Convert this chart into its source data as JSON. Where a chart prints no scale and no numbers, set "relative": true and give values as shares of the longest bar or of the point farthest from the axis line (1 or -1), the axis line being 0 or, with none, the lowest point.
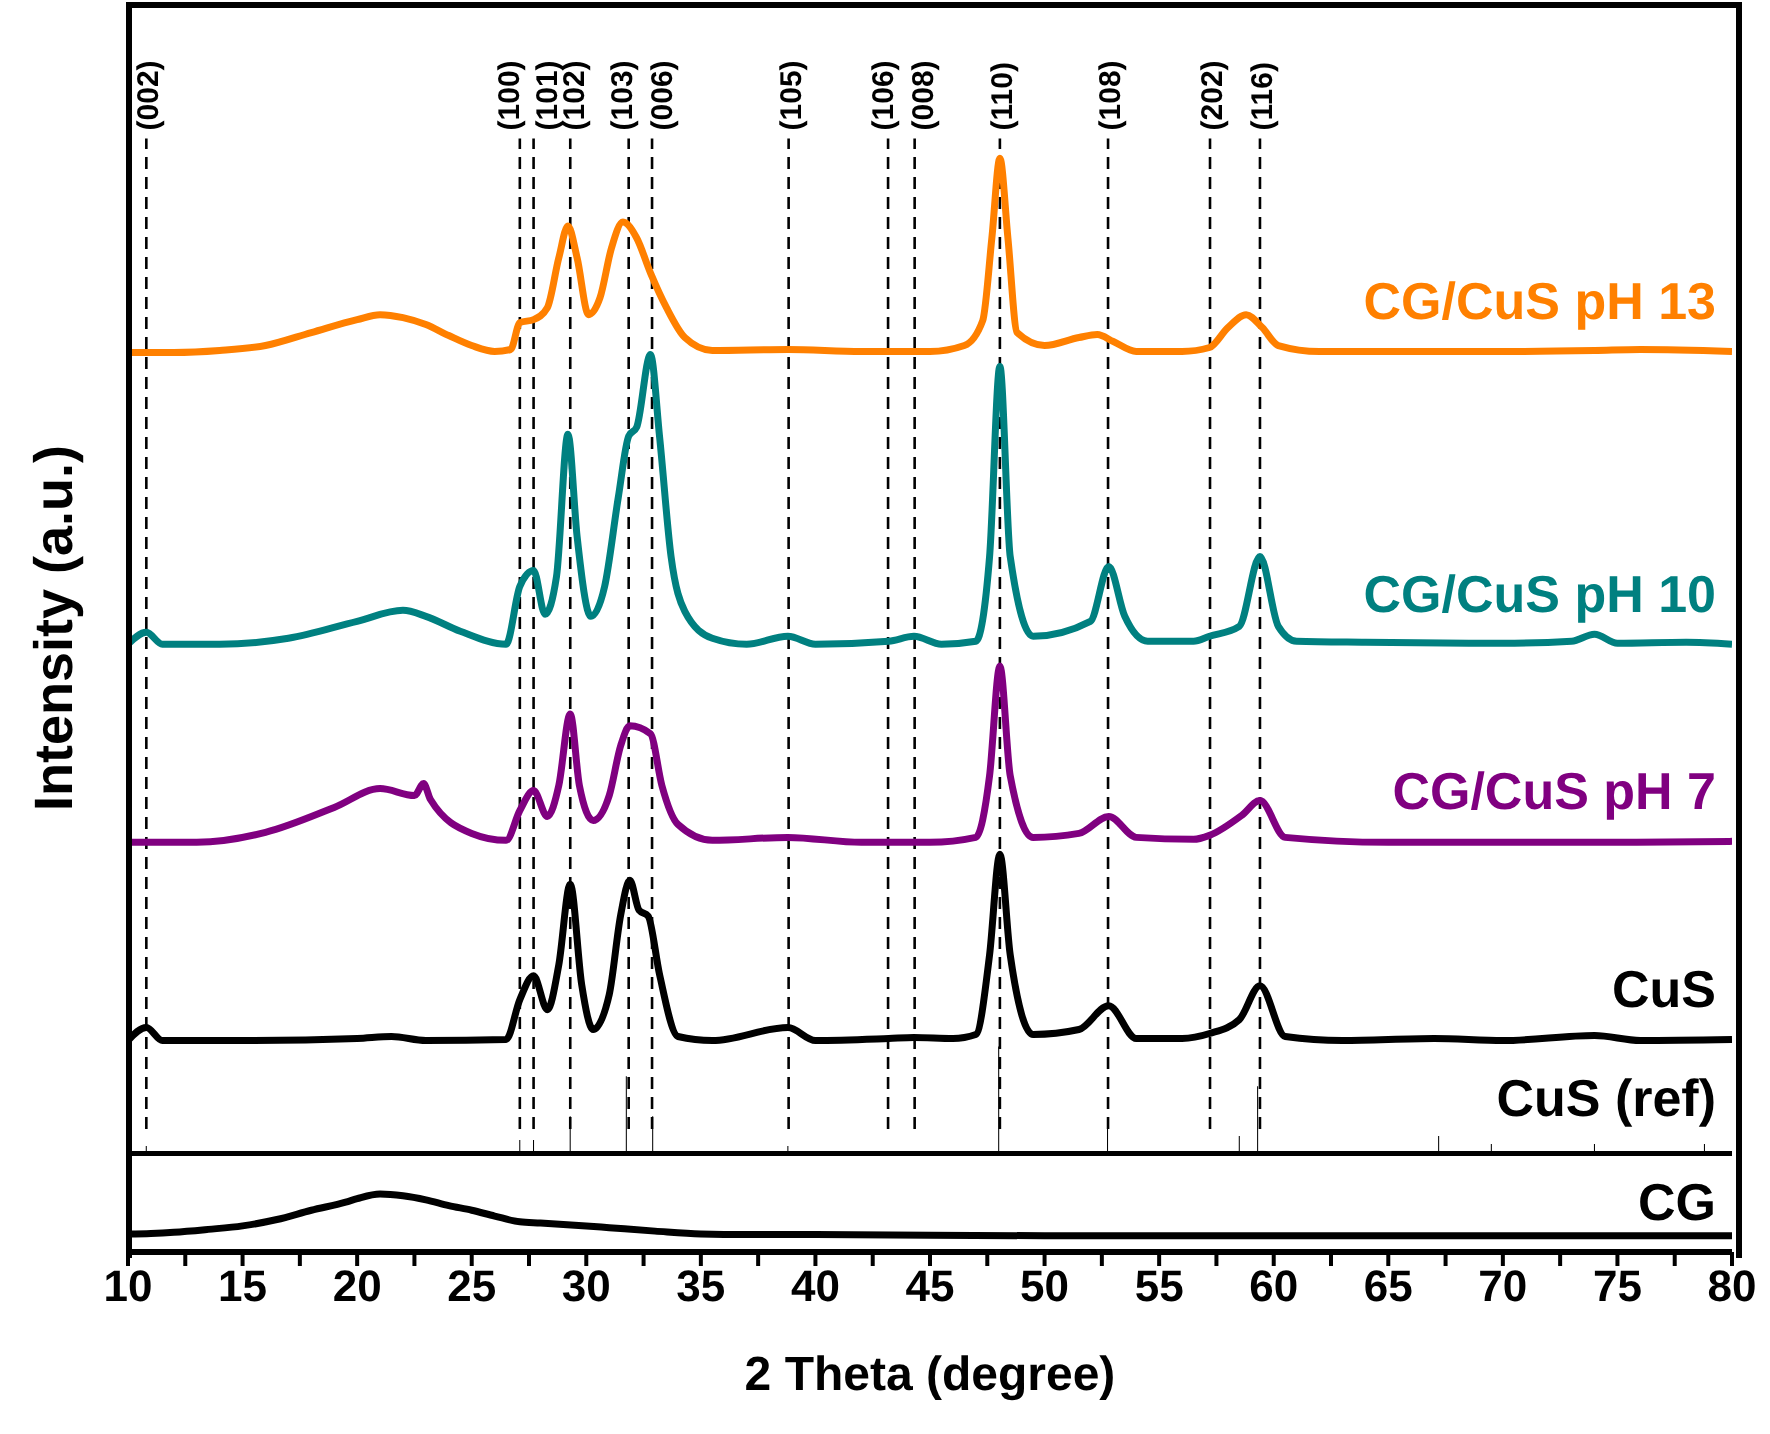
{
  "chart_data": [
    {
      "type": "line",
      "relative": true,
      "xlim": [
        10,
        80
      ],
      "tick_labels": false,
      "ylabel": "Intensity (a.u.)",
      "series": [
        {
          "name": "CG/CuS pH 13",
          "color": "#ff8000",
          "x": [
            10,
            12,
            14,
            16,
            18,
            20,
            21,
            22,
            23,
            24,
            25,
            26,
            26.7,
            27.1,
            27.7,
            28.3,
            28.8,
            29.2,
            29.6,
            30.1,
            30.6,
            31.1,
            31.6,
            32.2,
            32.8,
            33.5,
            34.3,
            35.5,
            38.8,
            42,
            45,
            46.5,
            47.3,
            47.7,
            48.05,
            48.4,
            48.8,
            50,
            51.5,
            52.3,
            53,
            54,
            56,
            57.2,
            58,
            58.8,
            59.5,
            60.2,
            62,
            66,
            70,
            74,
            76,
            80
          ],
          "values": [
            0.805,
            0.805,
            0.807,
            0.812,
            0.825,
            0.838,
            0.843,
            0.84,
            0.833,
            0.822,
            0.812,
            0.806,
            0.808,
            0.835,
            0.838,
            0.85,
            0.9,
            0.932,
            0.9,
            0.843,
            0.86,
            0.91,
            0.936,
            0.92,
            0.885,
            0.85,
            0.82,
            0.807,
            0.808,
            0.806,
            0.806,
            0.812,
            0.837,
            0.92,
            1.0,
            0.92,
            0.825,
            0.812,
            0.82,
            0.823,
            0.816,
            0.806,
            0.806,
            0.81,
            0.83,
            0.843,
            0.83,
            0.812,
            0.806,
            0.806,
            0.806,
            0.807,
            0.808,
            0.806
          ]
        },
        {
          "name": "CG/CuS pH 10",
          "color": "#008080",
          "x": [
            10,
            10.8,
            11.5,
            14,
            17,
            20,
            22,
            23,
            24.5,
            26.5,
            27.1,
            27.7,
            28.2,
            28.7,
            29.2,
            29.6,
            30.2,
            30.8,
            31.4,
            31.85,
            32.2,
            32.8,
            33.2,
            33.7,
            34.3,
            35.5,
            37,
            38.8,
            40,
            43.2,
            44.3,
            45.5,
            47,
            47.6,
            48.05,
            48.5,
            49.5,
            52,
            52.8,
            53.5,
            54.5,
            56.5,
            57.2,
            58.5,
            59.4,
            60.2,
            61,
            64,
            70,
            73,
            74,
            75,
            78,
            80
          ],
          "values": [
            0.512,
            0.524,
            0.512,
            0.512,
            0.518,
            0.535,
            0.546,
            0.54,
            0.525,
            0.512,
            0.57,
            0.586,
            0.542,
            0.58,
            0.723,
            0.62,
            0.54,
            0.57,
            0.66,
            0.721,
            0.73,
            0.803,
            0.72,
            0.6,
            0.545,
            0.518,
            0.512,
            0.52,
            0.512,
            0.515,
            0.52,
            0.512,
            0.515,
            0.6,
            0.791,
            0.6,
            0.52,
            0.535,
            0.59,
            0.54,
            0.515,
            0.515,
            0.52,
            0.53,
            0.6,
            0.53,
            0.515,
            0.514,
            0.513,
            0.515,
            0.522,
            0.513,
            0.514,
            0.512
          ]
        },
        {
          "name": "CG/CuS pH 7",
          "color": "#800080",
          "x": [
            10,
            13,
            16,
            19,
            21,
            22.5,
            22.9,
            23.2,
            25,
            26.5,
            27.1,
            27.7,
            28.3,
            28.8,
            29.3,
            29.7,
            30.3,
            31,
            31.5,
            31.9,
            32.8,
            33.3,
            34,
            35.5,
            38.8,
            42,
            45,
            47,
            47.6,
            48.05,
            48.5,
            49.5,
            51.5,
            52.8,
            54,
            56.5,
            57.2,
            58.6,
            59.4,
            60.5,
            65,
            70,
            75,
            80
          ],
          "values": [
            0.313,
            0.313,
            0.323,
            0.348,
            0.367,
            0.36,
            0.372,
            0.356,
            0.322,
            0.315,
            0.345,
            0.365,
            0.339,
            0.37,
            0.442,
            0.37,
            0.335,
            0.36,
            0.41,
            0.43,
            0.422,
            0.37,
            0.331,
            0.315,
            0.318,
            0.313,
            0.313,
            0.318,
            0.38,
            0.49,
            0.38,
            0.318,
            0.322,
            0.339,
            0.318,
            0.316,
            0.32,
            0.34,
            0.355,
            0.318,
            0.313,
            0.313,
            0.313,
            0.314
          ]
        },
        {
          "name": "CuS",
          "color": "#000000",
          "x": [
            10,
            10.8,
            11.5,
            15,
            20,
            21.5,
            23,
            26.5,
            27.1,
            27.7,
            28.3,
            28.8,
            29.3,
            29.8,
            30.3,
            31,
            31.5,
            31.9,
            32.3,
            32.7,
            33.2,
            34,
            35.5,
            38.8,
            40,
            43.2,
            44.3,
            46,
            47,
            47.6,
            48.05,
            48.5,
            49.5,
            51.5,
            52.8,
            54,
            56,
            57.2,
            58.5,
            59.4,
            60.5,
            63,
            67,
            70,
            74,
            76,
            80
          ],
          "values": [
            0.114,
            0.127,
            0.114,
            0.114,
            0.116,
            0.118,
            0.114,
            0.115,
            0.155,
            0.179,
            0.145,
            0.19,
            0.271,
            0.17,
            0.125,
            0.16,
            0.24,
            0.275,
            0.245,
            0.239,
            0.18,
            0.118,
            0.114,
            0.127,
            0.114,
            0.116,
            0.117,
            0.116,
            0.12,
            0.2,
            0.301,
            0.2,
            0.12,
            0.125,
            0.149,
            0.116,
            0.116,
            0.121,
            0.135,
            0.169,
            0.118,
            0.114,
            0.116,
            0.114,
            0.119,
            0.114,
            0.115
          ]
        },
        {
          "name": "CuS (ref)",
          "type": "bar",
          "color": "#000000",
          "x": [
            10.8,
            27.1,
            27.7,
            29.3,
            31.75,
            32.9,
            38.8,
            43.2,
            44.3,
            48,
            52.75,
            57.2,
            58.5,
            59.3,
            67.2,
            69.5,
            74,
            78.8
          ],
          "values": [
            0.008,
            0.014,
            0.014,
            0.038,
            0.078,
            0.038,
            0.008,
            null,
            null,
            0.108,
            0.026,
            null,
            0.018,
            0.068,
            0.018,
            0.01,
            0.01,
            0.01
          ]
        }
      ],
      "ref_lines": [
        {
          "axis": "x",
          "value": 10.8,
          "line_style": "dashed"
        },
        {
          "axis": "x",
          "value": 27.1,
          "line_style": "dashed"
        },
        {
          "axis": "x",
          "value": 27.7,
          "line_style": "dashed"
        },
        {
          "axis": "x",
          "value": 29.3,
          "line_style": "dashed"
        },
        {
          "axis": "x",
          "value": 31.85,
          "line_style": "dashed"
        },
        {
          "axis": "x",
          "value": 32.87,
          "line_style": "dashed"
        },
        {
          "axis": "x",
          "value": 38.83,
          "line_style": "dashed"
        },
        {
          "axis": "x",
          "value": 43.17,
          "line_style": "dashed"
        },
        {
          "axis": "x",
          "value": 44.33,
          "line_style": "dashed"
        },
        {
          "axis": "x",
          "value": 48.05,
          "line_style": "dashed"
        },
        {
          "axis": "x",
          "value": 52.77,
          "line_style": "dashed"
        },
        {
          "axis": "x",
          "value": 57.22,
          "line_style": "dashed"
        },
        {
          "axis": "x",
          "value": 59.4,
          "line_style": "dashed"
        }
      ],
      "annotations": [
        "(002)",
        "(100)",
        "(101)",
        "(102)",
        "(103)",
        "(006)",
        "(105)",
        "(106)",
        "(008)",
        "(110)",
        "(108)",
        "(202)",
        "(116)"
      ]
    },
    {
      "type": "line",
      "relative": true,
      "xlim": [
        10,
        80
      ],
      "tick_labels": "x",
      "xlabel": "2 Theta (degree)",
      "xticks": [
        10,
        {
          "value": 12.5,
          "label": null
        },
        15,
        {
          "value": 17.5,
          "label": null
        },
        20,
        {
          "value": 22.5,
          "label": null
        },
        25,
        {
          "value": 27.5,
          "label": null
        },
        30,
        {
          "value": 32.5,
          "label": null
        },
        35,
        {
          "value": 37.5,
          "label": null
        },
        40,
        {
          "value": 42.5,
          "label": null
        },
        45,
        {
          "value": 47.5,
          "label": null
        },
        50,
        {
          "value": 52.5,
          "label": null
        },
        55,
        {
          "value": 57.5,
          "label": null
        },
        60,
        {
          "value": 62.5,
          "label": null
        },
        65,
        {
          "value": 67.5,
          "label": null
        },
        70,
        {
          "value": 72.5,
          "label": null
        },
        75,
        {
          "value": 77.5,
          "label": null
        },
        80
      ],
      "series": [
        {
          "name": "CG",
          "color": "#000000",
          "x": [
            10,
            11,
            12,
            13.5,
            15,
            16.5,
            18,
            19.5,
            20,
            21,
            22,
            23,
            24,
            25,
            26,
            27.1,
            28,
            30,
            31,
            33,
            35,
            37,
            40,
            45,
            50,
            55,
            60,
            65,
            70,
            75,
            80
          ],
          "values": [
            0.31,
            0.32,
            0.34,
            0.39,
            0.45,
            0.56,
            0.72,
            0.86,
            0.92,
            1.0,
            0.97,
            0.9,
            0.8,
            0.72,
            0.62,
            0.52,
            0.5,
            0.45,
            0.42,
            0.36,
            0.31,
            0.3,
            0.3,
            0.29,
            0.28,
            0.28,
            0.28,
            0.28,
            0.28,
            0.28,
            0.28
          ]
        }
      ]
    }
  ]
}
